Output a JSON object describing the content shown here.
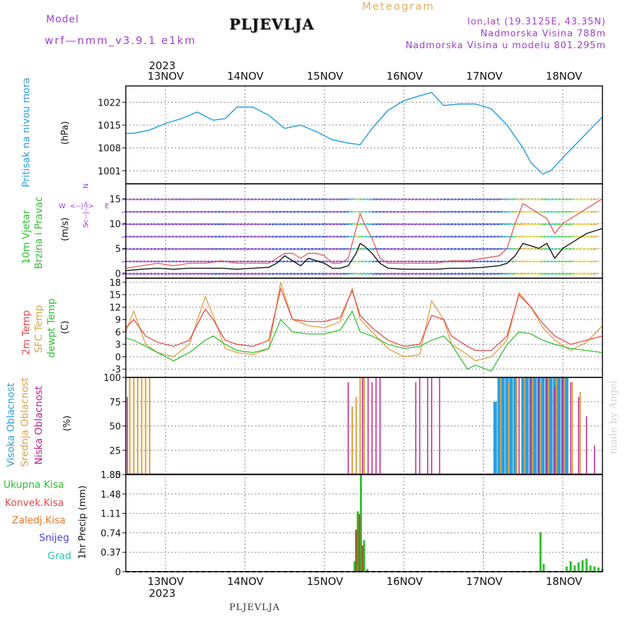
{
  "header": {
    "model_label": "Model",
    "model_value": "wrf—nmm_v3.9.1  e1km",
    "station": "PLJEVLJA",
    "meteogram": "Meteogram",
    "coords": "lon,lat (19.3125E, 43.35N)",
    "altitude": "Nadmorska Visina 788m",
    "model_altitude": "Nadmorska Visina u modelu 801.295m"
  },
  "axis_top": {
    "year": "2023",
    "days": [
      "13NOV",
      "14NOV",
      "15NOV",
      "16NOV",
      "17NOV",
      "18NOV"
    ]
  },
  "axis_bottom": {
    "year": "2023",
    "days": [
      "13NOV",
      "14NOV",
      "15NOV",
      "16NOV",
      "17NOV",
      "18NOV"
    ]
  },
  "footer": {
    "station": "PLJEVLJA",
    "watermark": "made by Angel"
  },
  "panels": {
    "pressure": {
      "title": "Pritisak na nivou mora",
      "unit": "(hPa)",
      "ticks": [
        "1022",
        "1015",
        "1008",
        "1001"
      ]
    },
    "wind": {
      "title1": "10m Vjetar",
      "title2": "Brzina i Pravac",
      "unit": "(m/s)",
      "ticks": [
        "15",
        "10",
        "5",
        "0"
      ],
      "compass": {
        "n": "N",
        "s": "S",
        "w": "W",
        "e": "E",
        "ns": "<--|-->"
      }
    },
    "temp": {
      "title1": "2m Temp",
      "title2": "SFC Temp",
      "title3": "dewpt Temp",
      "unit": "(C)",
      "ticks": [
        "18",
        "15",
        "12",
        "9",
        "6",
        "3",
        "0",
        "-3"
      ]
    },
    "cloud": {
      "title1": "Visoka Oblacnost",
      "title2": "Srednja Oblacnost",
      "title3": "Niska Oblacnost",
      "unit": "(%)",
      "ticks": [
        "100",
        "75",
        "50",
        "25",
        "0"
      ]
    },
    "precip": {
      "labels": [
        "Ukupna Kisa",
        "Konvek.Kisa",
        "Zaledj.Kisa",
        "Snijeg",
        "Grad"
      ],
      "unit": "1hr Precip (mm)",
      "ticks": [
        "1.85",
        "1.48",
        "1.11",
        "0.74",
        "0.37",
        "0"
      ]
    }
  },
  "colors": {
    "pressure": "#2aa0e0",
    "t2m": "#e84848",
    "tsfc": "#e0a040",
    "dewpt": "#30c030",
    "cloud_high": "#2aa0e0",
    "cloud_mid": "#e0a040",
    "cloud_low": "#c0208a",
    "precip_total": "#30c030",
    "precip_conv": "#e84848",
    "precip_frz": "#e07a30",
    "precip_snow": "#4848e0",
    "precip_hail": "#30c0c0",
    "wind_speed": "#111111",
    "wind_gust": "#e84848"
  },
  "chart_data": [
    {
      "type": "line",
      "name": "pressure",
      "x_days": [
        12.5,
        12.6,
        12.8,
        13.0,
        13.2,
        13.4,
        13.6,
        13.75,
        13.9,
        14.1,
        14.3,
        14.5,
        14.7,
        14.9,
        15.1,
        15.3,
        15.45,
        15.6,
        15.8,
        16.0,
        16.2,
        16.35,
        16.5,
        16.7,
        16.9,
        17.1,
        17.3,
        17.5,
        17.6,
        17.75,
        17.85,
        18.0,
        18.2,
        18.4,
        18.5
      ],
      "y": [
        1012.5,
        1012.5,
        1013.5,
        1015.5,
        1017,
        1019,
        1016.5,
        1017,
        1020.5,
        1020.5,
        1018,
        1014,
        1015,
        1013,
        1010.5,
        1009.5,
        1009,
        1014,
        1019.5,
        1022.5,
        1024,
        1025,
        1021,
        1021.5,
        1021.5,
        1020,
        1015,
        1008,
        1003.5,
        1000,
        1001,
        1005,
        1010,
        1015,
        1017.5
      ],
      "ylim": [
        997,
        1027
      ]
    },
    {
      "type": "line",
      "name": "wind",
      "x_days": [
        12.5,
        12.7,
        12.9,
        13.1,
        13.3,
        13.5,
        13.7,
        13.9,
        14.1,
        14.3,
        14.4,
        14.5,
        14.6,
        14.7,
        14.8,
        14.9,
        15.0,
        15.1,
        15.2,
        15.3,
        15.4,
        15.45,
        15.5,
        15.6,
        15.7,
        15.8,
        16.0,
        16.2,
        16.4,
        16.6,
        16.8,
        17.0,
        17.2,
        17.3,
        17.4,
        17.5,
        17.6,
        17.7,
        17.8,
        17.9,
        18.0,
        18.1,
        18.2,
        18.3,
        18.4,
        18.5
      ],
      "speed": [
        0.5,
        0.8,
        1.0,
        0.8,
        1.0,
        1.0,
        1.0,
        0.8,
        1.0,
        1.2,
        2.0,
        3.5,
        2.5,
        1.5,
        3.0,
        2.5,
        2.0,
        1.0,
        1.0,
        1.5,
        4.0,
        6.0,
        5.5,
        4.0,
        2.0,
        1.0,
        0.8,
        0.8,
        0.8,
        1.0,
        1.0,
        1.2,
        1.5,
        2.0,
        3.5,
        6.0,
        5.5,
        5.0,
        6.0,
        3.0,
        5.0,
        6.0,
        7.0,
        8.0,
        8.5,
        9.0
      ],
      "gust": [
        1.0,
        1.5,
        2.0,
        1.5,
        2.0,
        2.0,
        2.5,
        2.0,
        2.0,
        2.0,
        3.0,
        4.0,
        4.0,
        3.0,
        4.0,
        4.0,
        3.5,
        2.0,
        2.0,
        3.0,
        9.0,
        12.0,
        10.0,
        7.0,
        3.0,
        2.0,
        2.0,
        2.0,
        2.0,
        2.5,
        2.5,
        3.0,
        3.5,
        5.0,
        10.0,
        14.0,
        13.0,
        12.0,
        11.0,
        8.0,
        10.0,
        11.0,
        12.0,
        13.0,
        14.0,
        15.0
      ],
      "ylim": [
        -1,
        18
      ]
    },
    {
      "type": "line",
      "name": "temperature",
      "x_days": [
        12.5,
        12.6,
        12.75,
        12.9,
        13.1,
        13.3,
        13.5,
        13.6,
        13.75,
        13.9,
        14.1,
        14.3,
        14.45,
        14.6,
        14.8,
        15.0,
        15.2,
        15.35,
        15.45,
        15.6,
        15.8,
        16.0,
        16.2,
        16.35,
        16.5,
        16.6,
        16.8,
        16.9,
        17.1,
        17.3,
        17.45,
        17.6,
        17.75,
        17.9,
        18.1,
        18.3,
        18.5
      ],
      "t2m": [
        7,
        9,
        5,
        3.5,
        2.5,
        4,
        11.5,
        9,
        4,
        3,
        2.5,
        4,
        16.5,
        9,
        8.5,
        8.5,
        9.5,
        16,
        10,
        7,
        4,
        2.5,
        3,
        10,
        9,
        5,
        2.5,
        1.5,
        1.5,
        5,
        15,
        12,
        8,
        5,
        3,
        4,
        5
      ],
      "tsfc": [
        6,
        11,
        3,
        1,
        0,
        3,
        14.5,
        10,
        2,
        1,
        0.5,
        2,
        18,
        9,
        7.5,
        7,
        8.5,
        16.5,
        9,
        6,
        2,
        0,
        0.5,
        13.5,
        9,
        3,
        0.5,
        -1,
        0,
        4,
        15.5,
        12,
        7,
        4,
        1.5,
        3.5,
        7.5
      ],
      "dewpt": [
        4.5,
        4,
        2.5,
        1,
        -1,
        1,
        4,
        5,
        3,
        1.5,
        1,
        2,
        9,
        6,
        5.5,
        5.5,
        6.5,
        11,
        6,
        5,
        3,
        2,
        2.5,
        4,
        5,
        3,
        -3,
        -2,
        -3.5,
        3,
        6,
        5.5,
        4,
        3,
        2,
        1.5,
        1
      ],
      "ylim": [
        -5,
        19
      ]
    },
    {
      "type": "bar",
      "name": "cloud_cover",
      "high_x_days": [
        17.15,
        17.2,
        17.25,
        17.3,
        17.35,
        17.4,
        17.5,
        17.55,
        17.6,
        17.65,
        17.7,
        17.75,
        17.8,
        17.85,
        17.9,
        17.95,
        18.0,
        18.05
      ],
      "high_values": [
        75,
        100,
        100,
        100,
        100,
        100,
        100,
        100,
        100,
        100,
        100,
        100,
        100,
        100,
        100,
        100,
        100,
        100
      ],
      "mid_x_days": [
        12.55,
        12.6,
        12.65,
        12.7,
        12.75,
        12.8,
        15.35,
        15.4,
        15.45,
        15.5,
        17.22,
        17.32,
        17.42,
        17.52,
        17.62,
        17.72,
        17.82,
        17.92,
        18.02,
        18.12,
        18.22
      ],
      "mid_values": [
        100,
        100,
        100,
        100,
        100,
        100,
        70,
        80,
        100,
        100,
        100,
        95,
        100,
        100,
        100,
        95,
        100,
        100,
        100,
        95,
        85
      ],
      "low_x_days": [
        12.52,
        15.3,
        15.48,
        15.55,
        15.6,
        15.65,
        15.7,
        16.15,
        16.2,
        16.3,
        16.35,
        16.45,
        17.45,
        17.6,
        17.7,
        17.8,
        17.9,
        18.0,
        18.1,
        18.2,
        18.3,
        18.4
      ],
      "low_values": [
        80,
        95,
        100,
        100,
        95,
        100,
        100,
        95,
        100,
        100,
        100,
        100,
        100,
        100,
        100,
        100,
        90,
        100,
        95,
        80,
        60,
        30
      ],
      "ylim": [
        0,
        100
      ]
    },
    {
      "type": "bar",
      "name": "precipitation",
      "total_x_days": [
        15.38,
        15.42,
        15.46,
        15.5,
        15.54,
        17.72,
        17.76,
        18.05,
        18.1,
        18.15,
        18.2,
        18.25,
        18.3,
        18.35,
        18.4,
        18.45,
        18.5
      ],
      "total_values": [
        0.2,
        1.15,
        1.85,
        0.6,
        0.05,
        0.75,
        0.15,
        0.1,
        0.2,
        0.12,
        0.18,
        0.22,
        0.25,
        0.12,
        0.1,
        0.08,
        0.05
      ],
      "conv_x_days": [
        15.4,
        15.44,
        15.48
      ],
      "conv_values": [
        0.8,
        1.1,
        0.5
      ],
      "ylim": [
        0,
        1.85
      ]
    }
  ]
}
